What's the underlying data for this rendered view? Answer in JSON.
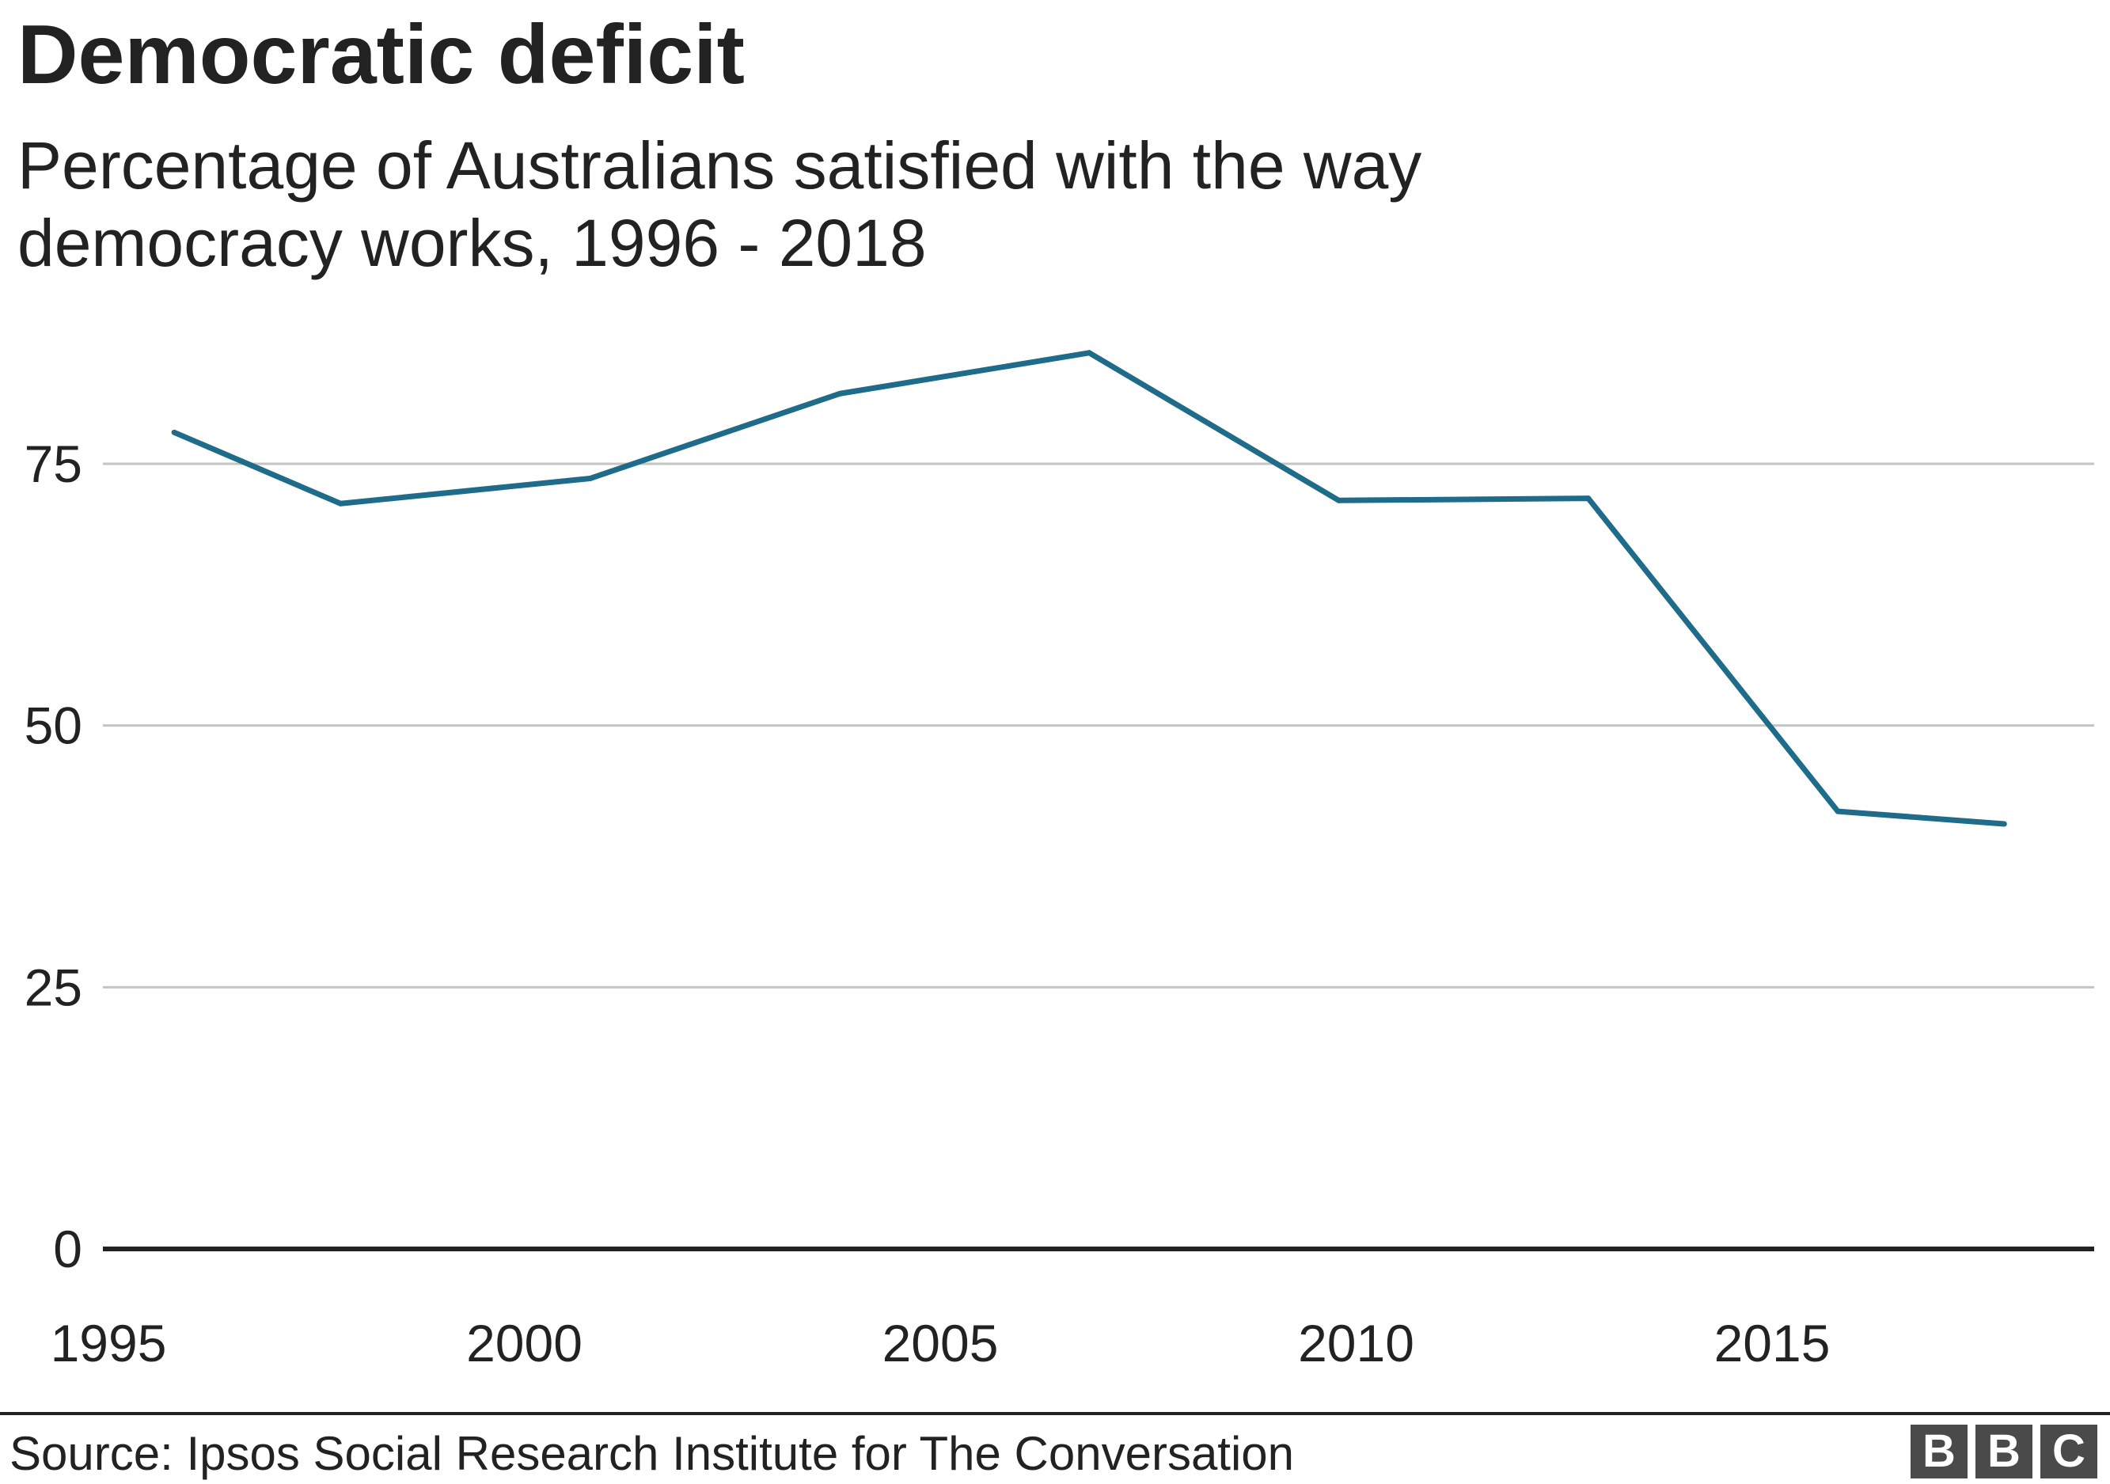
{
  "title": "Democratic deficit",
  "subtitle": "Percentage of Australians satisfied with the way democracy works, 1996 - 2018",
  "source": "Source: Ipsos Social Research Institute for The Conversation",
  "logo": [
    "B",
    "B",
    "C"
  ],
  "colors": {
    "line": "#1f6b8a",
    "grid": "#c4c4c4",
    "baseline": "#222222"
  },
  "chart_data": {
    "type": "line",
    "title": "Democratic deficit",
    "subtitle": "Percentage of Australians satisfied with the way democracy works, 1996 - 2018",
    "xlabel": "",
    "ylabel": "",
    "xlim": [
      1995,
      2019
    ],
    "ylim": [
      0,
      90
    ],
    "xticks": [
      1995,
      2000,
      2005,
      2010,
      2015
    ],
    "yticks": [
      0,
      25,
      50,
      75
    ],
    "grid": true,
    "legend": "none",
    "series": [
      {
        "x": [
          1996,
          1998,
          2001,
          2004,
          2007,
          2010,
          2013,
          2016,
          2018
        ],
        "y": [
          78,
          71.2,
          73.6,
          81.7,
          85.6,
          71.5,
          71.7,
          41.8,
          40.6
        ]
      }
    ]
  }
}
